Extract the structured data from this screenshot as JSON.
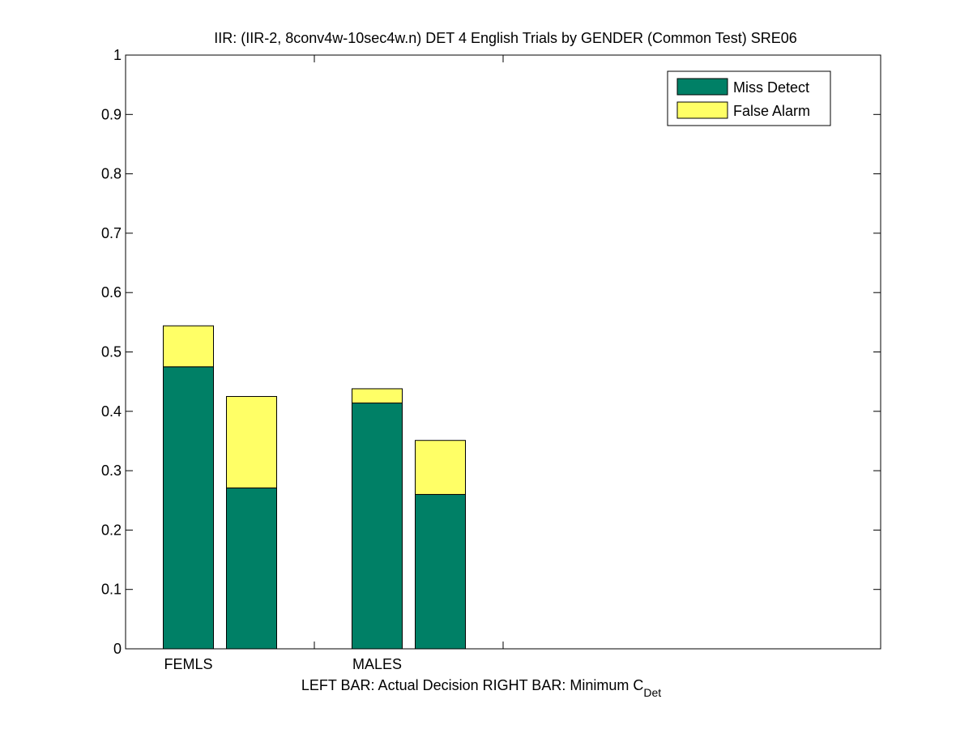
{
  "chart_data": {
    "type": "bar",
    "title": "IIR: (IIR-2, 8conv4w-10sec4w.n) DET 4 English Trials by GENDER (Common Test) SRE06",
    "xlabel": {
      "left": "LEFT BAR: Actual Decision",
      "right": "RIGHT BAR: Minimum C",
      "right_subscript": "Det"
    },
    "categories": [
      "FEMLS",
      "MALES"
    ],
    "bars_per_category": [
      "Actual Decision",
      "Minimum C_Det"
    ],
    "series": [
      {
        "name": "Miss Detect",
        "color": "#008066",
        "values": [
          [
            0.475,
            0.271
          ],
          [
            0.414,
            0.26
          ]
        ]
      },
      {
        "name": "False Alarm",
        "color": "#ffff66",
        "values": [
          [
            0.069,
            0.154
          ],
          [
            0.024,
            0.091
          ]
        ]
      }
    ],
    "totals": [
      [
        0.544,
        0.425
      ],
      [
        0.438,
        0.351
      ]
    ],
    "ylim": [
      0,
      1
    ],
    "yticks": [
      "0",
      "0.1",
      "0.2",
      "0.3",
      "0.4",
      "0.5",
      "0.6",
      "0.7",
      "0.8",
      "0.9",
      "1"
    ],
    "legend_position": "top-right",
    "grid": false
  }
}
